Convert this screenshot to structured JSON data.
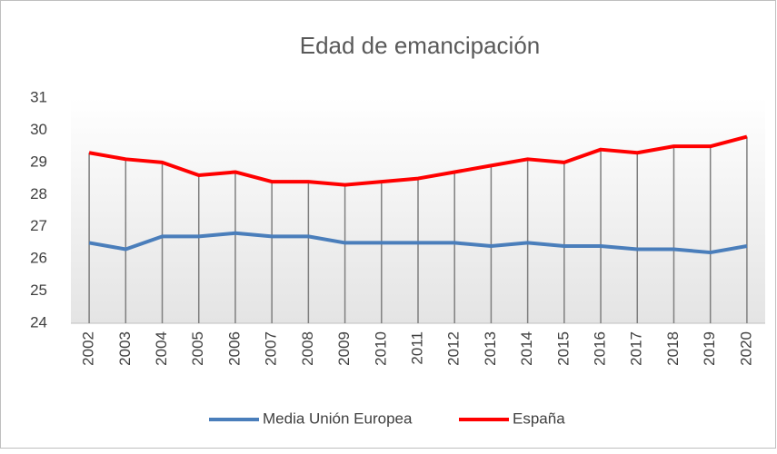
{
  "chart_data": {
    "type": "line",
    "title": "Edad de emancipación",
    "categories": [
      "2002",
      "2003",
      "2004",
      "2005",
      "2006",
      "2007",
      "2008",
      "2009",
      "2010",
      "2011",
      "2012",
      "2013",
      "2014",
      "2015",
      "2016",
      "2017",
      "2018",
      "2019",
      "2020"
    ],
    "series": [
      {
        "name": "Media Unión Europea",
        "color": "#4a7ebb",
        "values": [
          26.5,
          26.3,
          26.7,
          26.7,
          26.8,
          26.7,
          26.7,
          26.5,
          26.5,
          26.5,
          26.5,
          26.4,
          26.5,
          26.4,
          26.4,
          26.3,
          26.3,
          26.2,
          26.4
        ]
      },
      {
        "name": "España",
        "color": "#ff0000",
        "values": [
          29.3,
          29.1,
          29.0,
          28.6,
          28.7,
          28.4,
          28.4,
          28.3,
          28.4,
          28.5,
          28.7,
          28.9,
          29.1,
          29.0,
          29.4,
          29.3,
          29.5,
          29.5,
          29.8
        ]
      }
    ],
    "ylim": [
      24,
      31
    ],
    "yticks": [
      24,
      25,
      26,
      27,
      28,
      29,
      30,
      31
    ],
    "drop_lines": true,
    "legend": "bottom"
  }
}
